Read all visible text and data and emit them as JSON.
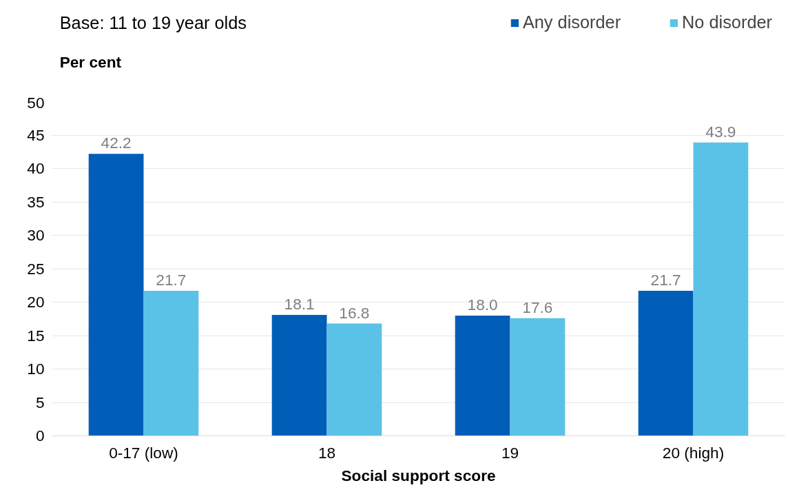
{
  "chart_data": {
    "type": "bar",
    "title": "Base: 11 to 19 year olds",
    "ylabel": "Per cent",
    "xlabel": "Social support score",
    "categories": [
      "0-17 (low)",
      "18",
      "19",
      "20 (high)"
    ],
    "series": [
      {
        "name": "Any disorder",
        "color": "#005eb8",
        "values": [
          42.2,
          18.1,
          18.0,
          21.7
        ]
      },
      {
        "name": "No disorder",
        "color": "#5bc2e7",
        "values": [
          21.7,
          16.8,
          17.6,
          43.9
        ]
      }
    ],
    "value_labels": [
      [
        "42.2",
        "18.1",
        "18.0",
        "21.7"
      ],
      [
        "21.7",
        "16.8",
        "17.6",
        "43.9"
      ]
    ],
    "ylim": [
      0,
      50
    ],
    "yticks": [
      0,
      5,
      10,
      15,
      20,
      25,
      30,
      35,
      40,
      45,
      50
    ],
    "grid": "y",
    "legend": "top right"
  }
}
